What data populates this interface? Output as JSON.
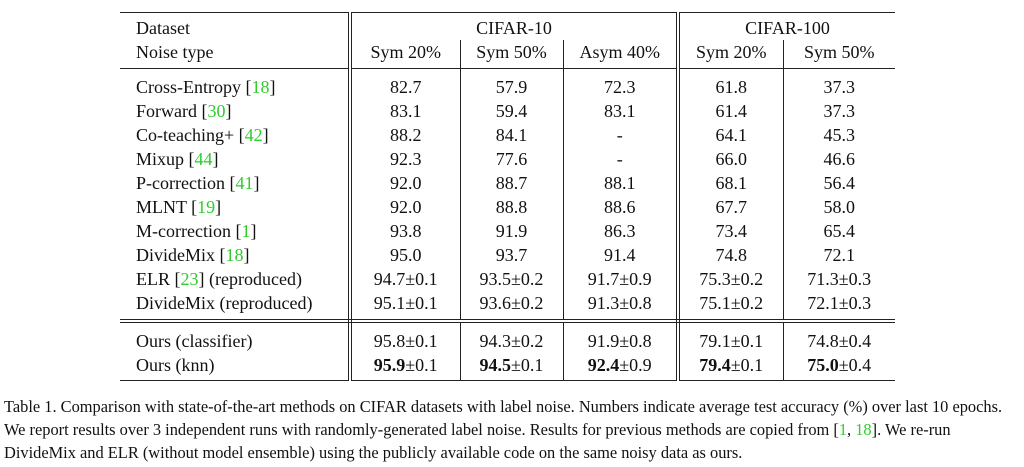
{
  "table": {
    "header": {
      "row1": [
        "Dataset",
        "CIFAR-10",
        "CIFAR-100"
      ],
      "row2": [
        "Noise type",
        "Sym 20%",
        "Sym 50%",
        "Asym 40%",
        "Sym 20%",
        "Sym 50%"
      ]
    },
    "row_groups": [
      [
        {
          "method": [
            {
              "text": "Cross-Entropy ["
            },
            {
              "text": "18",
              "cite": true
            },
            {
              "text": "]"
            }
          ],
          "values": [
            "82.7",
            "57.9",
            "72.3",
            "61.8",
            "37.3"
          ]
        },
        {
          "method": [
            {
              "text": "Forward ["
            },
            {
              "text": "30",
              "cite": true
            },
            {
              "text": "]"
            }
          ],
          "values": [
            "83.1",
            "59.4",
            "83.1",
            "61.4",
            "37.3"
          ]
        },
        {
          "method": [
            {
              "text": "Co-teaching+ ["
            },
            {
              "text": "42",
              "cite": true
            },
            {
              "text": "]"
            }
          ],
          "values": [
            "88.2",
            "84.1",
            "-",
            "64.1",
            "45.3"
          ]
        },
        {
          "method": [
            {
              "text": "Mixup ["
            },
            {
              "text": "44",
              "cite": true
            },
            {
              "text": "]"
            }
          ],
          "values": [
            "92.3",
            "77.6",
            "-",
            "66.0",
            "46.6"
          ]
        },
        {
          "method": [
            {
              "text": "P-correction ["
            },
            {
              "text": "41",
              "cite": true
            },
            {
              "text": "]"
            }
          ],
          "values": [
            "92.0",
            "88.7",
            "88.1",
            "68.1",
            "56.4"
          ]
        },
        {
          "method": [
            {
              "text": "MLNT ["
            },
            {
              "text": "19",
              "cite": true
            },
            {
              "text": "]"
            }
          ],
          "values": [
            "92.0",
            "88.8",
            "88.6",
            "67.7",
            "58.0"
          ]
        },
        {
          "method": [
            {
              "text": "M-correction ["
            },
            {
              "text": "1",
              "cite": true
            },
            {
              "text": "]"
            }
          ],
          "values": [
            "93.8",
            "91.9",
            "86.3",
            "73.4",
            "65.4"
          ]
        },
        {
          "method": [
            {
              "text": "DivideMix ["
            },
            {
              "text": "18",
              "cite": true
            },
            {
              "text": "]"
            }
          ],
          "values": [
            "95.0",
            "93.7",
            "91.4",
            "74.8",
            "72.1"
          ]
        },
        {
          "method": [
            {
              "text": "ELR ["
            },
            {
              "text": "23",
              "cite": true
            },
            {
              "text": "] (reproduced)"
            }
          ],
          "values": [
            "94.7±0.1",
            "93.5±0.2",
            "91.7±0.9",
            "75.3±0.2",
            "71.3±0.3"
          ]
        },
        {
          "method": [
            {
              "text": "DivideMix (reproduced)"
            }
          ],
          "values": [
            "95.1±0.1",
            "93.6±0.2",
            "91.3±0.8",
            "75.1±0.2",
            "72.1±0.3"
          ]
        }
      ],
      [
        {
          "method": [
            {
              "text": "Ours (classifier)"
            }
          ],
          "values": [
            "95.8±0.1",
            "94.3±0.2",
            "91.9±0.8",
            "79.1±0.1",
            "74.8±0.4"
          ]
        },
        {
          "method": [
            {
              "text": "Ours (knn)"
            }
          ],
          "values": [
            [
              {
                "text": "95.9",
                "bold": true
              },
              {
                "text": "±0.1"
              }
            ],
            [
              {
                "text": "94.5",
                "bold": true
              },
              {
                "text": "±0.1"
              }
            ],
            [
              {
                "text": "92.4",
                "bold": true
              },
              {
                "text": "±0.9"
              }
            ],
            [
              {
                "text": "79.4",
                "bold": true
              },
              {
                "text": "±0.1"
              }
            ],
            [
              {
                "text": "75.0",
                "bold": true
              },
              {
                "text": "±0.4"
              }
            ]
          ]
        }
      ]
    ]
  },
  "caption": [
    {
      "text": "Table 1.  Comparison with state-of-the-art methods on CIFAR datasets with label noise. Numbers indicate average test accuracy (%) over last 10 epochs. We report results over 3 independent runs with randomly-generated label noise. Results for previous methods are copied from ["
    },
    {
      "text": "1",
      "cite": true
    },
    {
      "text": ", "
    },
    {
      "text": "18",
      "cite": true
    },
    {
      "text": "]. We re-run DivideMix and ELR (without model ensemble) using the publicly available code on the same noisy data as ours."
    }
  ]
}
